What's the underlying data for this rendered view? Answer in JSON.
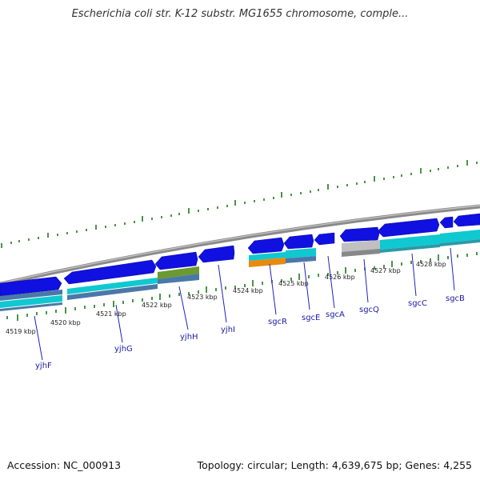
{
  "header": {
    "title": "Escherichia coli str. K-12 substr. MG1655 chromosome, comple..."
  },
  "footer": {
    "accession": "Accession: NC_000913",
    "summary": "Topology: circular; Length: 4,639,675 bp; Genes: 4,255"
  },
  "axis": {
    "unit_labels": [
      "4519 kbp",
      "4520 kbp",
      "4521 kbp",
      "4522 kbp",
      "4523 kbp",
      "4524 kbp",
      "4525 kbp",
      "4526 kbp",
      "4527 kbp",
      "4528 kbp"
    ]
  },
  "genes": [
    {
      "name": "yjhF"
    },
    {
      "name": "yjhG"
    },
    {
      "name": "yjhH"
    },
    {
      "name": "yjhI"
    },
    {
      "name": "sgcR"
    },
    {
      "name": "sgcE"
    },
    {
      "name": "sgcA"
    },
    {
      "name": "sgcQ"
    },
    {
      "name": "sgcC"
    },
    {
      "name": "sgcB"
    }
  ],
  "colors": {
    "gene": "#1010e0",
    "cds_cyan": "#10c8d0",
    "cds_steel": "#4a78a8",
    "cds_olive": "#6a9a30",
    "cds_orange": "#e88a10",
    "cds_gray": "#c0c0c0",
    "backbone": "#8a8a8a",
    "tick": "#1a7a1a",
    "label_line": "#2020c0"
  }
}
